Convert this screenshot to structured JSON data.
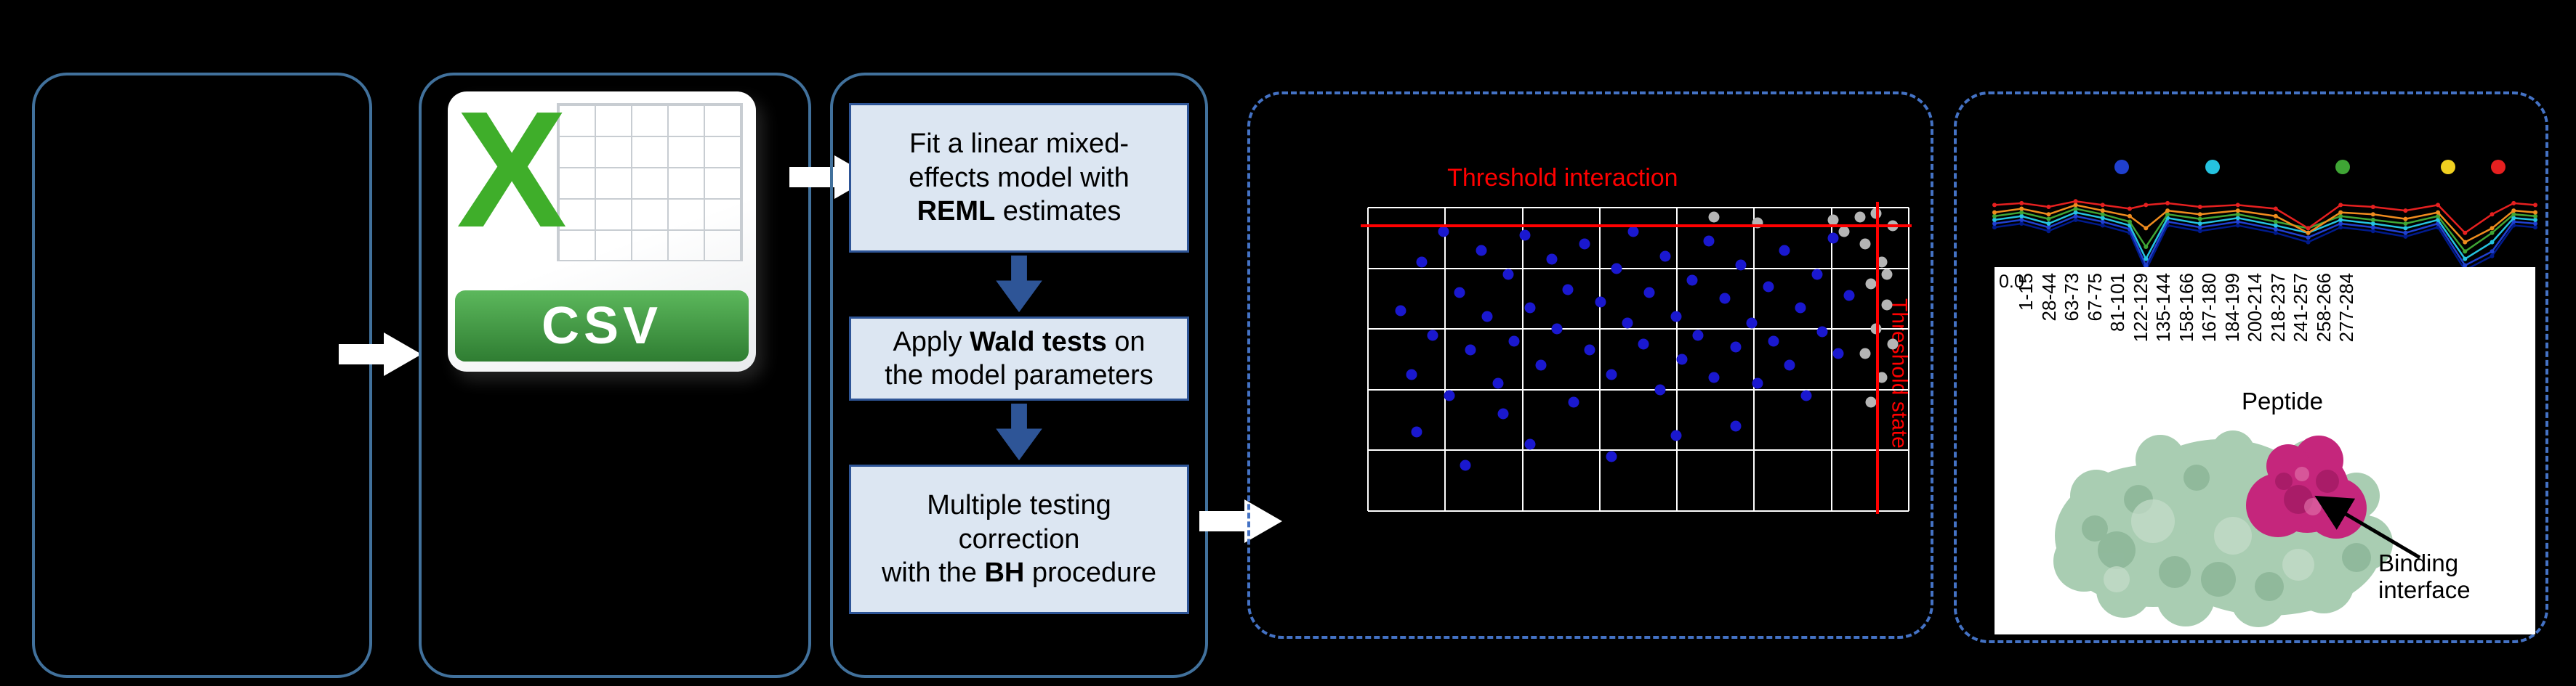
{
  "colors": {
    "bg": "#000000",
    "panel-border": "#41719c",
    "panel-dashed": "#4472c4",
    "accent-blue": "#2e5597",
    "box-fill": "#dce6f2",
    "box-border": "#2e5597",
    "arrow-white": "#ffffff",
    "threshold-red": "#ff0000",
    "grid-white": "#ffffff",
    "excel-green": "#3fae2a",
    "csv-banner-green-top": "#5cb85c",
    "csv-banner-green-bottom": "#2f7d32",
    "protein-green": "#a9cdb2",
    "protein-green-dark": "#7ca98a",
    "protein-green-light": "#c6ddcb",
    "protein-magenta": "#c5267c",
    "protein-magenta-dark": "#97175c",
    "protein-magenta-light": "#df6ba6"
  },
  "csv_icon": {
    "letter": "X",
    "label": "CSV"
  },
  "steps_panel": {
    "steps": [
      {
        "lines": [
          {
            "pre": "Fit a linear mixed-"
          },
          {
            "pre": "effects model with"
          },
          {
            "bold": "REML",
            "post": " estimates"
          }
        ]
      },
      {
        "lines": [
          {
            "pre": "Apply ",
            "bold": "Wald tests",
            "post": " on"
          },
          {
            "pre": "the model parameters"
          }
        ]
      },
      {
        "lines": [
          {
            "pre": "Multiple testing"
          },
          {
            "pre": "correction"
          },
          {
            "pre": "with the ",
            "bold": "BH",
            "post": " procedure"
          }
        ]
      }
    ]
  },
  "results": {
    "binding_label": "Binding interface"
  },
  "chart_data": [
    {
      "type": "scatter",
      "title": "Threshold interaction",
      "side_label": "Threshold state",
      "threshold_y_pct": 5.5,
      "threshold_x_pct": 94,
      "grid": {
        "x_pct": [
          0,
          14.3,
          28.6,
          42.9,
          57.1,
          71.4,
          85.7,
          100
        ],
        "y_pct": [
          0,
          20,
          40,
          60,
          80,
          100
        ]
      },
      "series": [
        {
          "name": "blue-points",
          "color": "#1a18cf",
          "points": [
            [
              6,
              34
            ],
            [
              8,
              55
            ],
            [
              10,
              18
            ],
            [
              12,
              42
            ],
            [
              14,
              8
            ],
            [
              15,
              62
            ],
            [
              17,
              28
            ],
            [
              19,
              47
            ],
            [
              21,
              14
            ],
            [
              22,
              36
            ],
            [
              24,
              58
            ],
            [
              26,
              22
            ],
            [
              27,
              44
            ],
            [
              29,
              9
            ],
            [
              30,
              33
            ],
            [
              32,
              52
            ],
            [
              34,
              17
            ],
            [
              35,
              40
            ],
            [
              37,
              27
            ],
            [
              38,
              64
            ],
            [
              40,
              12
            ],
            [
              41,
              47
            ],
            [
              43,
              31
            ],
            [
              45,
              55
            ],
            [
              46,
              20
            ],
            [
              48,
              38
            ],
            [
              49,
              8
            ],
            [
              51,
              45
            ],
            [
              52,
              28
            ],
            [
              54,
              60
            ],
            [
              55,
              16
            ],
            [
              57,
              36
            ],
            [
              58,
              50
            ],
            [
              60,
              24
            ],
            [
              61,
              42
            ],
            [
              63,
              11
            ],
            [
              64,
              56
            ],
            [
              66,
              30
            ],
            [
              68,
              46
            ],
            [
              69,
              19
            ],
            [
              71,
              38
            ],
            [
              72,
              58
            ],
            [
              74,
              26
            ],
            [
              75,
              44
            ],
            [
              77,
              14
            ],
            [
              78,
              52
            ],
            [
              80,
              33
            ],
            [
              81,
              62
            ],
            [
              83,
              22
            ],
            [
              84,
              41
            ],
            [
              86,
              10
            ],
            [
              87,
              48
            ],
            [
              89,
              29
            ],
            [
              57,
              75
            ],
            [
              30,
              78
            ],
            [
              18,
              85
            ],
            [
              45,
              82
            ],
            [
              68,
              72
            ],
            [
              25,
              68
            ],
            [
              9,
              74
            ]
          ]
        },
        {
          "name": "gray-points",
          "color": "#b5b5b5",
          "points": [
            [
              91,
              3
            ],
            [
              94,
              2
            ],
            [
              97,
              6
            ],
            [
              92,
              12
            ],
            [
              95,
              18
            ],
            [
              93,
              25
            ],
            [
              96,
              32
            ],
            [
              94,
              40
            ],
            [
              92,
              48
            ],
            [
              95,
              56
            ],
            [
              93,
              64
            ],
            [
              88,
              8
            ],
            [
              86,
              4
            ],
            [
              72,
              5
            ],
            [
              64,
              3
            ],
            [
              97,
              45
            ],
            [
              96,
              22
            ]
          ]
        }
      ]
    },
    {
      "type": "line",
      "y_tick_label": "0.0",
      "x_axis_label": "Peptide",
      "x_tick_labels": [
        "1-15",
        "28-44",
        "63-73",
        "67-75",
        "81-101",
        "122-129",
        "135-144",
        "158-166",
        "167-180",
        "184-199",
        "200-214",
        "218-237",
        "241-257",
        "258-266",
        "277-284"
      ],
      "x_pct": [
        0,
        5,
        10,
        15,
        20,
        25,
        28,
        32,
        38,
        45,
        52,
        58,
        64,
        70,
        76,
        82,
        87,
        92,
        96,
        100
      ],
      "series": [
        {
          "name": "navy-line",
          "color": "#001a8c",
          "values_pct": [
            54,
            50,
            58,
            46,
            52,
            60,
            100,
            52,
            58,
            52,
            60,
            70,
            54,
            58,
            64,
            54,
            100,
            85,
            52,
            54
          ]
        },
        {
          "name": "blue-line",
          "color": "#2040cf",
          "values_pct": [
            50,
            46,
            54,
            42,
            48,
            56,
            95,
            48,
            54,
            48,
            56,
            65,
            50,
            54,
            60,
            50,
            95,
            80,
            48,
            50
          ]
        },
        {
          "name": "cyan-line",
          "color": "#25c3e0",
          "values_pct": [
            46,
            42,
            50,
            38,
            44,
            52,
            88,
            44,
            50,
            44,
            52,
            60,
            46,
            50,
            55,
            46,
            88,
            70,
            44,
            46
          ]
        },
        {
          "name": "green-line",
          "color": "#3fa535",
          "values_pct": [
            42,
            38,
            45,
            34,
            40,
            48,
            75,
            40,
            45,
            40,
            48,
            55,
            42,
            46,
            50,
            42,
            80,
            60,
            40,
            42
          ]
        },
        {
          "name": "orange-line",
          "color": "#f08c1e",
          "values_pct": [
            38,
            34,
            40,
            30,
            36,
            42,
            55,
            36,
            40,
            36,
            42,
            60,
            38,
            40,
            45,
            38,
            70,
            55,
            36,
            38
          ]
        },
        {
          "name": "red-line",
          "color": "#e62020",
          "values_pct": [
            30,
            28,
            32,
            26,
            30,
            34,
            30,
            28,
            32,
            30,
            34,
            55,
            30,
            32,
            36,
            30,
            60,
            40,
            28,
            30
          ]
        }
      ],
      "legend": [
        {
          "color": "#2040cf",
          "x_pct": 28
        },
        {
          "color": "#25c3e0",
          "x_pct": 43.5
        },
        {
          "color": "#3fa535",
          "x_pct": 65.5
        },
        {
          "color": "#f0d020",
          "x_pct": 83.5
        },
        {
          "color": "#e62020",
          "x_pct": 92
        }
      ]
    }
  ]
}
